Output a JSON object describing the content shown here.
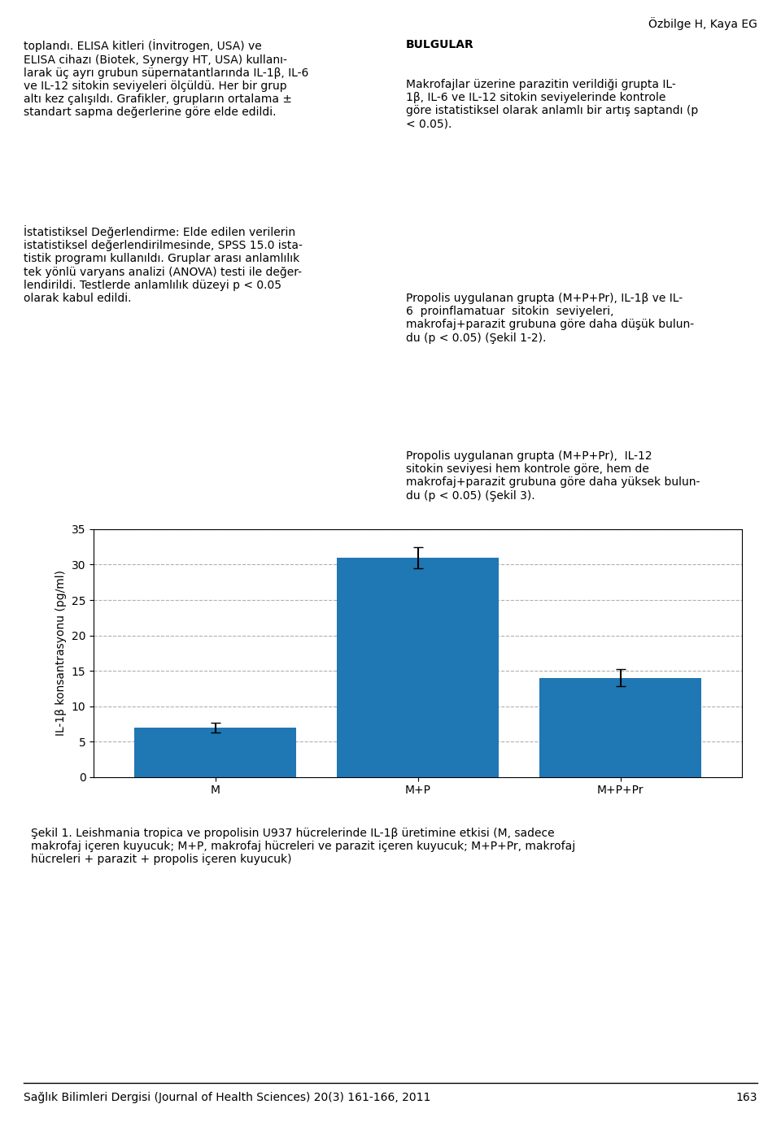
{
  "chart_data": {
    "type": "bar",
    "categories": [
      "M",
      "M+P",
      "M+P+Pr"
    ],
    "values": [
      7.0,
      31.0,
      14.0
    ],
    "errors": [
      0.7,
      1.5,
      1.2
    ],
    "ylabel": "IL-1β konsantrasyonu (pg/ml)",
    "ylim": [
      0,
      35
    ],
    "yticks": [
      0,
      5,
      10,
      15,
      20,
      25,
      30,
      35
    ],
    "grid": true,
    "annotations": [
      "Özbilge H, Kaya EG",
      "toplandı. ELISA kitleri (İnvitrogen, USA) ve\nELISA cihazı (Biotek, Synergy HT, USA) kullanı-\nlarak üç ayrı grubun süpernatantlarında IL-1β, IL-6\nve IL-12 sitokin seviyeleri ölçüldü. Her bir grup\naltı kez çalışıldı. Grafikler, grupların ortalama ±\nstandart sapma değerlerine göre elde edildi.",
      "İstatistiksel Değerlendirme: Elde edilen verilerin\nistatistiksel değerlendirilmesinde, SPSS 15.0 ista-\ntistik programı kullanıldı. Gruplar arası anlamlılık\ntek yönlü varyans analizi (ANOVA) testi ile değer-\nlendirildi. Testlerde anlamlılık düzeyi p < 0.05\nolarak kabul edildi.",
      "BULGULAR",
      "Makrofajlar üzerine parazitin verildiği grupta IL-\n1β, IL-6 ve IL-12 sitokin seviyelerinde kontrole\ngöre istatistiksel olarak anlamlı bir artış saptandı (p\n< 0.05).",
      "Propolis uygulanan grupta (M+P+Pr), IL-1β ve IL-\n6  proinflamatuar  sitokin  seviyeleri,\nmakrofaj+parazit grubuna göre daha düşük bulun-\ndu (p < 0.05) (Şekil 1-2).",
      "Propolis uygulanan grupta (M+P+Pr),  IL-12\nsitokin seviyesi hem kontrole göre, hem de\nmakrofaj+parazit grubuna göre daha yüksek bulun-\ndu (p < 0.05) (Şekil 3).",
      "Şekil 1. Leishmania tropica ve propolisin U937 hücrelerinde IL-1β üretimine etkisi (M, sadece\nmakrofaj içeren kuyucuk; M+P, makrofaj hücreleri ve parazit içeren kuyucuk; M+P+Pr, makrofaj\nhücreleri + parazit + propolis içeren kuyucuk)",
      "Sağlık Bilimleri Dergisi (Journal of Health Sciences) 20(3) 161-166, 2011",
      "163"
    ]
  }
}
